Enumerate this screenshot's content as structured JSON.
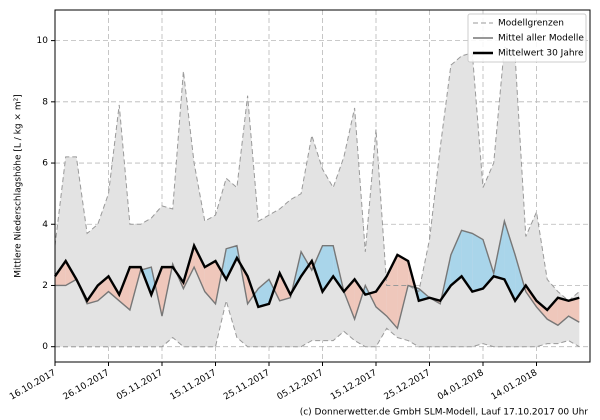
{
  "chart_data": {
    "type": "line",
    "ylabel": "Mittlere Niederschlagshöhe [L / kg × m²]",
    "footer": "(c) Donnerwetter.de GmbH SLM-Modell, Lauf 17.10.2017 00 Uhr",
    "x": [
      "2017-10-16",
      "2017-10-18",
      "2017-10-20",
      "2017-10-22",
      "2017-10-24",
      "2017-10-26",
      "2017-10-28",
      "2017-10-30",
      "2017-11-01",
      "2017-11-03",
      "2017-11-05",
      "2017-11-07",
      "2017-11-09",
      "2017-11-11",
      "2017-11-13",
      "2017-11-15",
      "2017-11-17",
      "2017-11-19",
      "2017-11-21",
      "2017-11-23",
      "2017-11-25",
      "2017-11-27",
      "2017-11-29",
      "2017-12-01",
      "2017-12-03",
      "2017-12-05",
      "2017-12-07",
      "2017-12-09",
      "2017-12-11",
      "2017-12-13",
      "2017-12-15",
      "2017-12-17",
      "2017-12-19",
      "2017-12-21",
      "2017-12-23",
      "2017-12-25",
      "2017-12-27",
      "2017-12-29",
      "2017-12-31",
      "2018-01-02",
      "2018-01-04",
      "2018-01-06",
      "2018-01-08",
      "2018-01-10",
      "2018-01-12",
      "2018-01-14",
      "2018-01-16",
      "2018-01-18",
      "2018-01-20",
      "2018-01-22"
    ],
    "series": [
      {
        "name": "Modellgrenzen",
        "color": "#999999",
        "band_color": "#e3e3e3",
        "values": [
          3.3,
          6.2,
          6.2,
          3.7,
          4.0,
          5.0,
          7.9,
          4.0,
          4.0,
          4.2,
          4.6,
          4.5,
          9.0,
          6.0,
          4.1,
          4.3,
          5.5,
          5.2,
          8.2,
          4.1,
          4.3,
          4.5,
          4.8,
          5.0,
          6.9,
          5.8,
          5.2,
          6.2,
          7.8,
          3.1,
          7.1,
          2.0,
          2.0,
          2.0,
          1.8,
          3.5,
          6.5,
          9.2,
          9.5,
          9.6,
          5.2,
          6.0,
          9.8,
          9.5,
          3.6,
          4.4,
          2.2,
          1.8,
          1.5,
          1.8
        ],
        "lower": [
          0,
          0,
          0,
          0,
          0,
          0,
          0,
          0,
          0,
          0,
          0,
          0.3,
          0,
          0,
          0,
          0,
          1.5,
          0.3,
          0,
          0,
          0,
          0,
          0,
          0,
          0.2,
          0.2,
          0.2,
          0.5,
          0.2,
          0,
          0,
          0.6,
          0.3,
          0.2,
          0,
          0,
          0,
          0,
          0,
          0,
          0.1,
          0,
          0,
          0,
          0,
          0,
          0.1,
          0.1,
          0.2,
          0
        ]
      },
      {
        "name": "Mittel aller Modelle",
        "color": "#777777",
        "values": [
          2.0,
          2.0,
          2.2,
          1.4,
          1.5,
          1.8,
          1.5,
          1.2,
          2.5,
          2.6,
          1.0,
          2.7,
          1.9,
          2.6,
          1.8,
          1.4,
          3.2,
          3.3,
          1.4,
          1.9,
          2.2,
          1.5,
          1.6,
          3.1,
          2.5,
          3.3,
          3.3,
          1.8,
          0.9,
          2.0,
          1.3,
          1.0,
          0.6,
          2.0,
          1.9,
          1.6,
          1.4,
          3.0,
          3.8,
          3.7,
          3.5,
          2.4,
          4.1,
          3.0,
          1.8,
          1.3,
          0.9,
          0.7,
          1.0,
          0.8
        ]
      },
      {
        "name": "Mittelwert 30 Jahre",
        "color": "#000000",
        "values": [
          2.3,
          2.8,
          2.2,
          1.5,
          2.0,
          2.3,
          1.7,
          2.6,
          2.6,
          1.7,
          2.6,
          2.6,
          2.1,
          3.3,
          2.6,
          2.8,
          2.2,
          2.9,
          2.3,
          1.3,
          1.4,
          2.4,
          1.7,
          2.3,
          2.8,
          1.8,
          2.3,
          1.8,
          2.2,
          1.7,
          1.8,
          2.3,
          3.0,
          2.8,
          1.5,
          1.6,
          1.5,
          2.0,
          2.3,
          1.8,
          1.9,
          2.3,
          2.2,
          1.5,
          2.0,
          1.5,
          1.2,
          1.6,
          1.5,
          1.6
        ]
      }
    ],
    "above_color": "#a9d5ea",
    "below_color": "#efc7bb",
    "xlim": [
      "2017-10-16",
      "2018-01-24"
    ],
    "xticks": [
      {
        "value": "2017-10-16",
        "label": "16.10.2017"
      },
      {
        "value": "2017-10-26",
        "label": "26.10.2017"
      },
      {
        "value": "2017-11-05",
        "label": "05.11.2017"
      },
      {
        "value": "2017-11-15",
        "label": "15.11.2017"
      },
      {
        "value": "2017-11-25",
        "label": "25.11.2017"
      },
      {
        "value": "2017-12-05",
        "label": "05.12.2017"
      },
      {
        "value": "2017-12-15",
        "label": "15.12.2017"
      },
      {
        "value": "2017-12-25",
        "label": "25.12.2017"
      },
      {
        "value": "2018-01-04",
        "label": "04.01.2018"
      },
      {
        "value": "2018-01-14",
        "label": "14.01.2018"
      }
    ],
    "ylim": [
      -0.5,
      11
    ],
    "yticks": [
      0,
      2,
      4,
      6,
      8,
      10
    ],
    "grid": true,
    "legend": "upper right"
  }
}
